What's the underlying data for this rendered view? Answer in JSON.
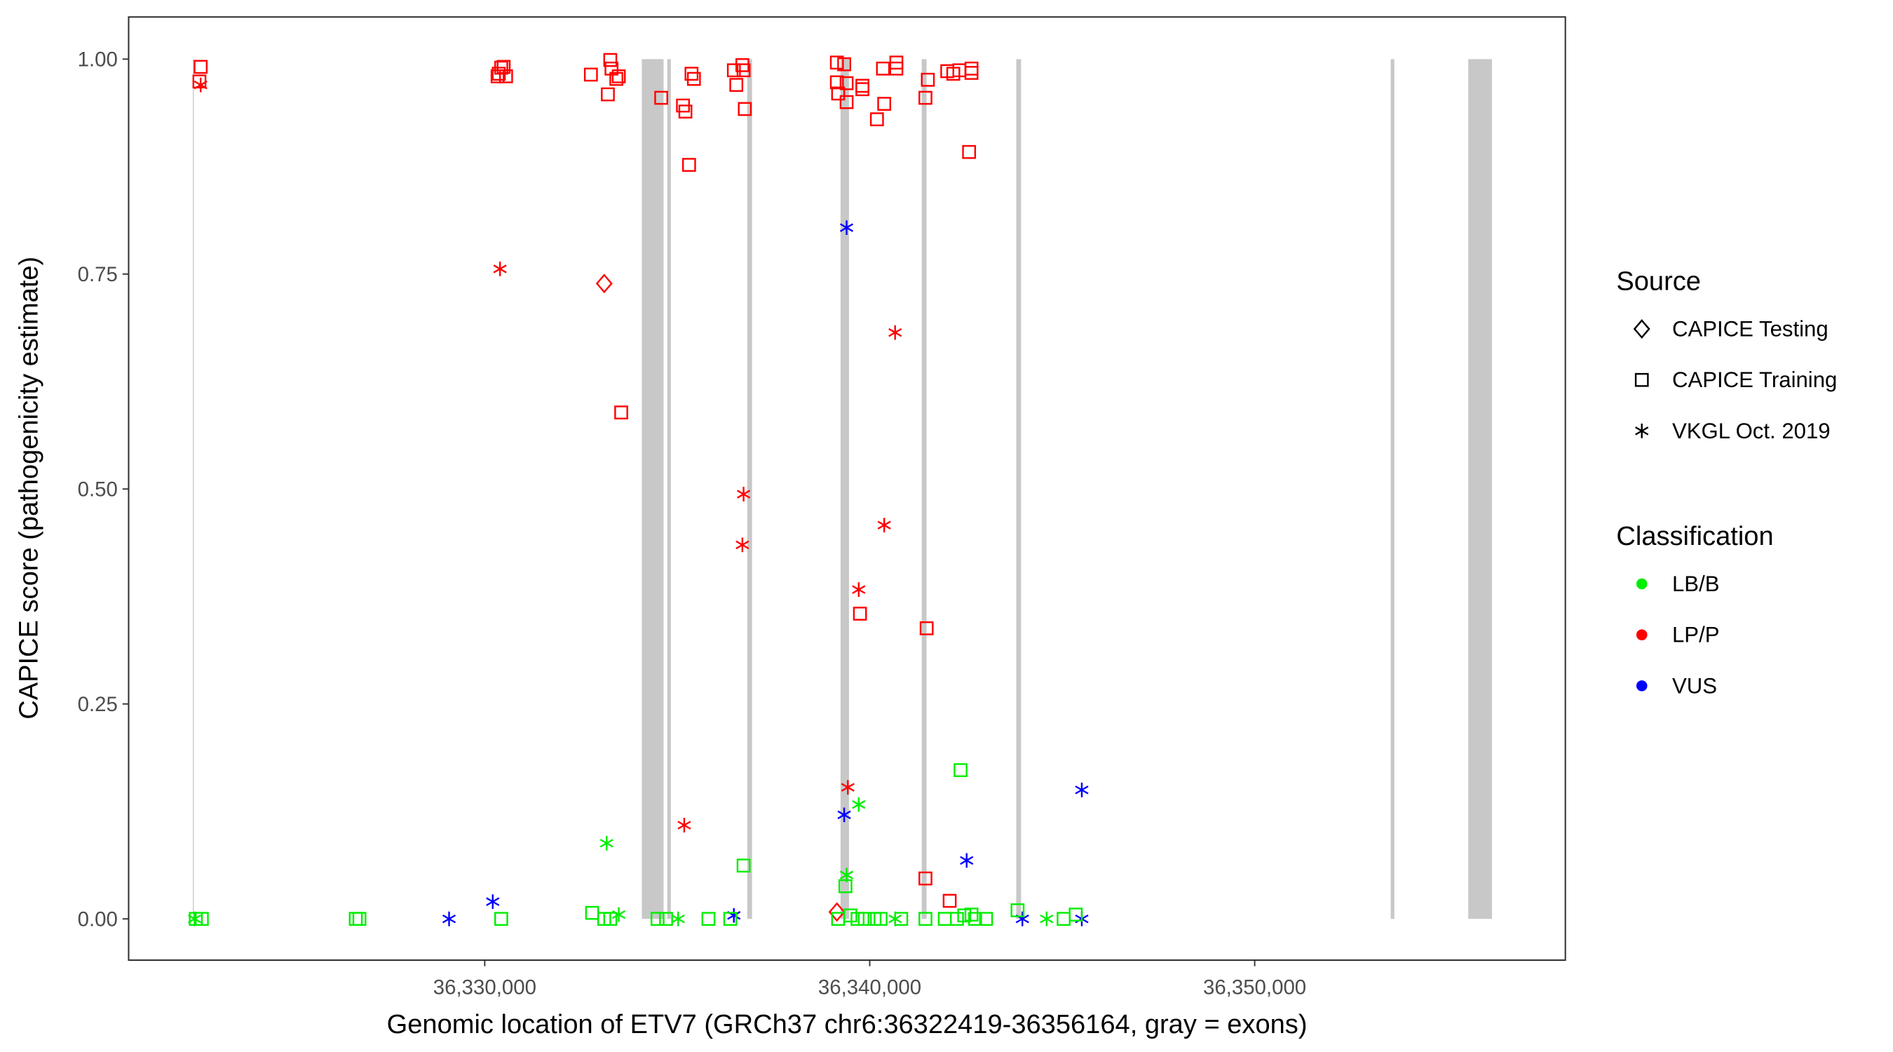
{
  "chart_data": {
    "type": "scatter",
    "xlabel": "Genomic location of ETV7 (GRCh37 chr6:36322419-36356164, gray = exons)",
    "ylabel": "CAPICE score (pathogenicity estimate)",
    "xlim": [
      36320750,
      36358070
    ],
    "ylim": [
      -0.048,
      1.049
    ],
    "x_ticks": [
      36330000,
      36340000,
      36350000
    ],
    "x_tick_labels": [
      "36,330,000",
      "36,340,000",
      "36,350,000"
    ],
    "y_ticks": [
      0,
      0.25,
      0.5,
      0.75,
      1.0
    ],
    "y_tick_labels": [
      "0.00",
      "0.25",
      "0.50",
      "0.75",
      "1.00"
    ],
    "grid": false,
    "exons": [
      [
        36322419,
        36322440
      ],
      [
        36334080,
        36334646
      ],
      [
        36334740,
        36334835
      ],
      [
        36336818,
        36336944
      ],
      [
        36339242,
        36339462
      ],
      [
        36341351,
        36341477
      ],
      [
        36343806,
        36343932
      ],
      [
        36353534,
        36353628
      ],
      [
        36355548,
        36356164
      ]
    ],
    "exon_color": "#c8c8c8",
    "legend": {
      "placement": "right",
      "source_title": "Source",
      "source_items": [
        {
          "label": "CAPICE Testing",
          "shape": "diamond"
        },
        {
          "label": "CAPICE Training",
          "shape": "square"
        },
        {
          "label": "VKGL Oct. 2019",
          "shape": "asterisk"
        }
      ],
      "class_title": "Classification",
      "class_items": [
        {
          "label": "LB/B",
          "color": "#00ee00"
        },
        {
          "label": "LP/P",
          "color": "#ff0000"
        },
        {
          "label": "VUS",
          "color": "#0000ff"
        }
      ]
    },
    "series": [
      {
        "source": "CAPICE Training",
        "classification": "LP/P",
        "x": [
          36322621,
          36322589,
          36330365,
          36330428,
          36330491,
          36330334,
          36330554,
          36332758,
          36333261,
          36333293,
          36333198,
          36333419,
          36333482,
          36334584,
          36335150,
          36335213,
          36335371,
          36335434,
          36335308,
          36336472,
          36336693,
          36336724,
          36336535,
          36336756,
          36339148,
          36339337,
          36339148,
          36339400,
          36339180,
          36339400,
          36339810,
          36339810,
          36340188,
          36340377,
          36340692,
          36340692,
          36340345,
          36341447,
          36341510,
          36342014,
          36342171,
          36342329,
          36342644,
          36342644,
          36342581,
          36333545,
          36339747,
          36341479,
          36341447,
          36342077
        ],
        "y": [
          0.991,
          0.974,
          0.983,
          0.99,
          0.991,
          0.98,
          0.98,
          0.982,
          0.999,
          0.989,
          0.959,
          0.977,
          0.98,
          0.955,
          0.946,
          0.939,
          0.983,
          0.977,
          0.877,
          0.987,
          0.993,
          0.987,
          0.97,
          0.942,
          0.996,
          0.994,
          0.973,
          0.972,
          0.96,
          0.95,
          0.969,
          0.965,
          0.93,
          0.948,
          0.996,
          0.989,
          0.989,
          0.955,
          0.976,
          0.986,
          0.983,
          0.987,
          0.989,
          0.984,
          0.892,
          0.589,
          0.355,
          0.338,
          0.047,
          0.021
        ]
      },
      {
        "source": "VKGL Oct. 2019",
        "classification": "LP/P",
        "x": [
          36322621,
          36330397,
          36336724,
          36336693,
          36340660,
          36340377,
          36339715,
          36339432,
          36335182
        ],
        "y": [
          0.97,
          0.756,
          0.494,
          0.435,
          0.682,
          0.458,
          0.383,
          0.153,
          0.109
        ]
      },
      {
        "source": "CAPICE Testing",
        "classification": "LP/P",
        "x": [
          36333104,
          36339148
        ],
        "y": [
          0.739,
          0.008
        ]
      },
      {
        "source": "VKGL Oct. 2019",
        "classification": "VUS",
        "x": [
          36339400,
          36330208,
          36329074,
          36336472,
          36339337,
          36342518,
          36345509,
          36343966,
          36345509
        ],
        "y": [
          0.804,
          0.02,
          0,
          0.004,
          0.121,
          0.068,
          0.15,
          0,
          0
        ]
      },
      {
        "source": "CAPICE Training",
        "classification": "LB/B",
        "x": [
          36322495,
          36322652,
          36326650,
          36326745,
          36330428,
          36332789,
          36333104,
          36333261,
          36334489,
          36334710,
          36335811,
          36336378,
          36336724,
          36339369,
          36339180,
          36339495,
          36339684,
          36339873,
          36340125,
          36340282,
          36340818,
          36341447,
          36341951,
          36342266,
          36342455,
          36342644,
          36342738,
          36343022,
          36343840,
          36345037,
          36345352,
          36342360
        ],
        "y": [
          0,
          0,
          0,
          0,
          0,
          0.007,
          0,
          0,
          0,
          0,
          0,
          0,
          0.062,
          0.038,
          0,
          0.004,
          0,
          0,
          0,
          0,
          0,
          0,
          0,
          0,
          0.004,
          0.005,
          0,
          0,
          0.01,
          0,
          0.005,
          0.173
        ]
      },
      {
        "source": "VKGL Oct. 2019",
        "classification": "LB/B",
        "x": [
          36322463,
          36333167,
          36333482,
          36335024,
          36339400,
          36339715,
          36340660,
          36344596
        ],
        "y": [
          0,
          0.088,
          0.005,
          0,
          0.051,
          0.133,
          0,
          0
        ]
      }
    ]
  }
}
